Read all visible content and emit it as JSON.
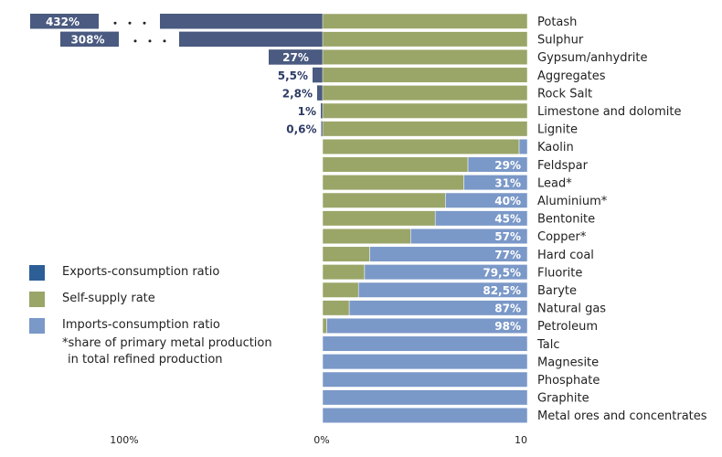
{
  "chart_data": {
    "type": "bar",
    "categories": [
      "Potash",
      "Sulphur",
      "Gypsum/anhydrite",
      "Aggregates",
      "Rock Salt",
      "Limestone and dolomite",
      "Lignite",
      "Kaolin",
      "Feldspar",
      "Lead*",
      "Aluminium*",
      "Bentonite",
      "Copper*",
      "Hard coal",
      "Fluorite",
      "Baryte",
      "Natural gas",
      "Petroleum",
      "Talc",
      "Magnesite",
      "Phosphate",
      "Graphite",
      "Metal ores and concentrates"
    ],
    "series": [
      {
        "name": "Exports-consumption ratio",
        "color": "#4a5a80",
        "values": [
          432,
          308,
          27,
          5.5,
          2.8,
          1,
          0.6,
          0,
          0,
          0,
          0,
          0,
          0,
          0,
          0,
          0,
          0,
          0,
          0,
          0,
          0,
          0,
          0
        ],
        "labels": [
          "432%",
          "308%",
          "27%",
          "5,5%",
          "2,8%",
          "1%",
          "0,6%",
          "",
          "",
          "",
          "",
          "",
          "",
          "",
          "",
          "",
          "",
          "",
          "",
          "",
          "",
          "",
          ""
        ]
      },
      {
        "name": "Self-supply rate",
        "color": "#9aa568",
        "values": [
          100,
          100,
          100,
          100,
          100,
          100,
          100,
          96,
          71,
          69,
          60,
          55,
          43,
          23,
          20.5,
          17.5,
          13,
          2,
          0,
          0,
          0,
          0,
          0
        ]
      },
      {
        "name": "Imports-consumption ratio",
        "color": "#7a98c8",
        "values": [
          0,
          0,
          0,
          0,
          0,
          0,
          0,
          4,
          29,
          31,
          40,
          45,
          57,
          77,
          79.5,
          82.5,
          87,
          98,
          100,
          100,
          100,
          100,
          100
        ],
        "labels": [
          "",
          "",
          "",
          "",
          "",
          "",
          "",
          "",
          "29%",
          "31%",
          "40%",
          "45%",
          "57%",
          "77%",
          "79,5%",
          "82,5%",
          "87%",
          "98%",
          "",
          "",
          "",
          "",
          ""
        ]
      }
    ],
    "x_ticks": [
      "100%",
      "0%",
      "10"
    ],
    "footnote": [
      "*share of primary metal production",
      "in total refined production"
    ]
  },
  "legend": [
    {
      "label": "Exports-consumption ratio",
      "color": "#2d5f96"
    },
    {
      "label": "Self-supply rate",
      "color": "#9aa568"
    },
    {
      "label": "Imports-consumption ratio",
      "color": "#7a98c8"
    }
  ]
}
